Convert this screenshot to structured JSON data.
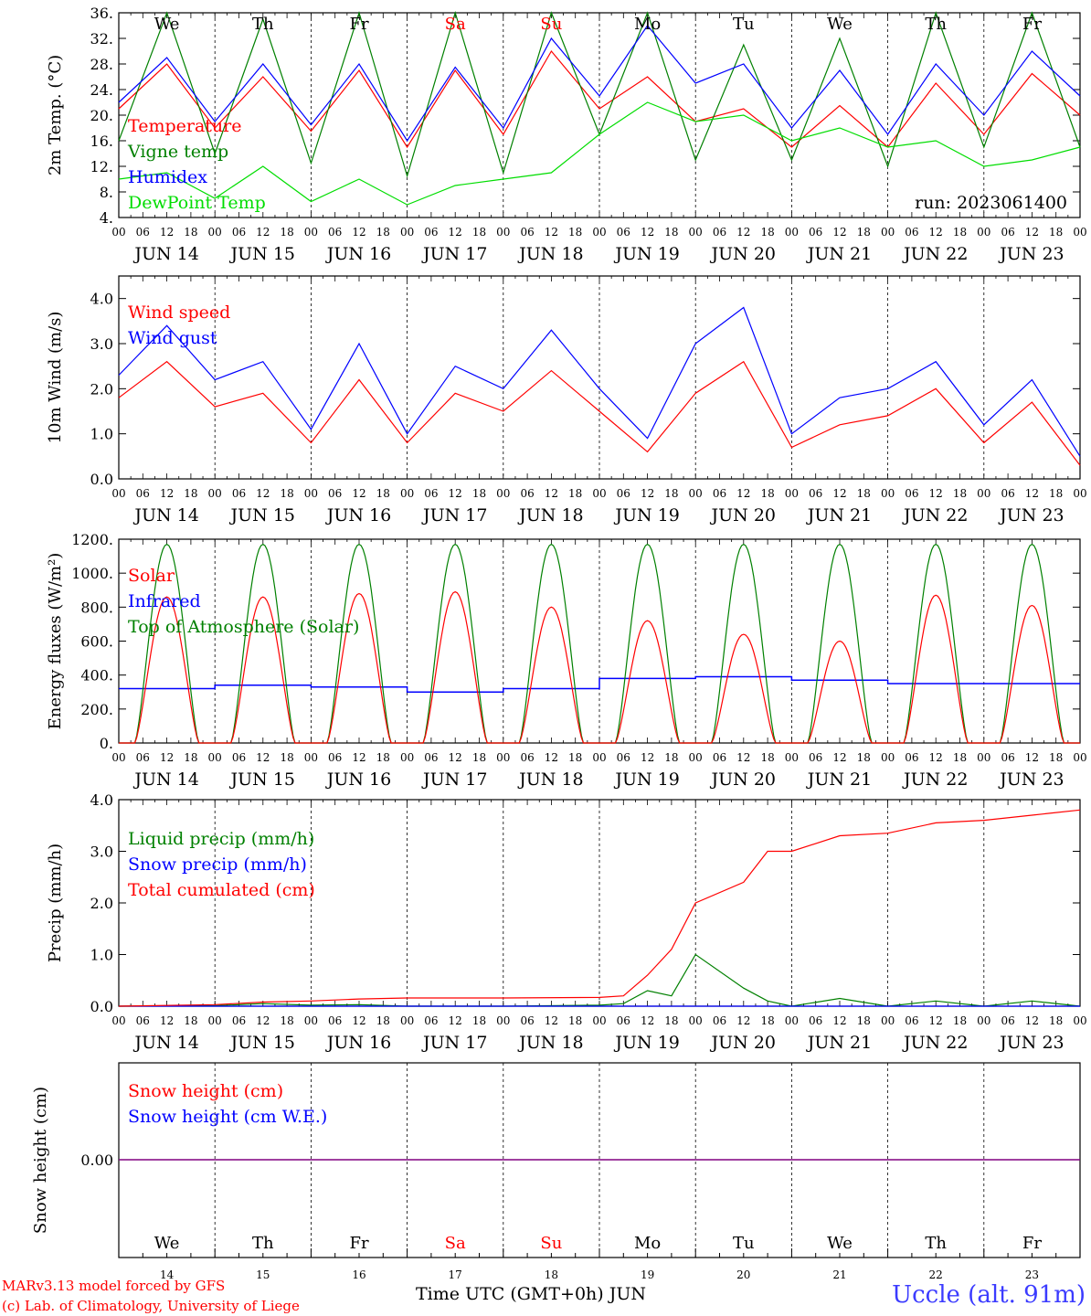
{
  "run_label": "run: 2023061400",
  "day_names": [
    "We",
    "Th",
    "Fr",
    "Sa",
    "Su",
    "Mo",
    "Tu",
    "We",
    "Th",
    "Fr"
  ],
  "day_name_colors": [
    "#000000",
    "#000000",
    "#000000",
    "#ff0000",
    "#ff0000",
    "#000000",
    "#000000",
    "#000000",
    "#000000",
    "#000000"
  ],
  "hour_ticks": [
    "00",
    "06",
    "12",
    "18"
  ],
  "date_labels": [
    "JUN 14",
    "JUN 15",
    "JUN 16",
    "JUN 17",
    "JUN 18",
    "JUN 19",
    "JUN 20",
    "JUN 21",
    "JUN 22",
    "JUN 23"
  ],
  "day_numbers": [
    "14",
    "15",
    "16",
    "17",
    "18",
    "19",
    "20",
    "21",
    "22",
    "23"
  ],
  "footer": {
    "credit_line1": "MARv3.13 model forced by GFS",
    "credit_line2": "(c) Lab. of Climatology, University of Liege",
    "x_title": "Time UTC (GMT+0h) JUN",
    "station": "Uccle (alt. 91m)"
  },
  "colors": {
    "red": "#ff0000",
    "green": "#008000",
    "blue": "#0000ff",
    "lightgreen": "#00dd00",
    "purple": "#800080"
  },
  "chart_data": [
    {
      "type": "line",
      "ylabel": "2m Temp. (°C)",
      "ylim": [
        4,
        36
      ],
      "yticks": [
        "4.",
        "8.",
        "12.",
        "16.",
        "20.",
        "24.",
        "28.",
        "32.",
        "36."
      ],
      "x": [
        "JUN 14 00",
        "JUN 14 12",
        "JUN 15 00",
        "JUN 15 12",
        "JUN 16 00",
        "JUN 16 12",
        "JUN 17 00",
        "JUN 17 12",
        "JUN 18 00",
        "JUN 18 12",
        "JUN 19 00",
        "JUN 19 12",
        "JUN 20 00",
        "JUN 20 12",
        "JUN 21 00",
        "JUN 21 12",
        "JUN 22 00",
        "JUN 22 12",
        "JUN 23 00",
        "JUN 23 12",
        "JUN 24 00"
      ],
      "series": [
        {
          "name": "Temperature",
          "color": "#ff0000",
          "values": [
            21,
            28,
            18,
            26,
            17.5,
            27,
            15,
            27,
            17,
            30,
            21,
            26,
            19,
            21,
            15,
            21.5,
            15,
            25,
            17,
            26.5,
            20
          ]
        },
        {
          "name": "Vigne temp",
          "color": "#008000",
          "values": [
            16,
            36,
            14,
            35,
            12.5,
            36,
            10.5,
            36,
            11,
            37,
            17,
            36,
            13,
            31,
            13,
            32,
            12,
            37,
            15,
            37,
            15
          ]
        },
        {
          "name": "Humidex",
          "color": "#0000ff",
          "values": [
            22,
            29,
            19,
            28,
            18.5,
            28,
            16,
            27.5,
            18,
            32,
            23,
            34,
            25,
            28,
            18,
            27,
            17,
            28,
            20,
            30,
            23
          ]
        },
        {
          "name": "DewPoint Temp",
          "color": "#00dd00",
          "values": [
            10,
            11,
            7,
            12,
            6.5,
            10,
            6,
            9,
            10,
            11,
            17,
            22,
            19,
            20,
            16,
            18,
            15,
            16,
            12,
            13,
            15
          ]
        }
      ]
    },
    {
      "type": "line",
      "ylabel": "10m Wind (m/s)",
      "ylim": [
        0,
        4.5
      ],
      "yticks": [
        "0.0",
        "1.0",
        "2.0",
        "3.0",
        "4.0"
      ],
      "x": [
        "JUN 14 00",
        "JUN 14 12",
        "JUN 15 00",
        "JUN 15 12",
        "JUN 16 00",
        "JUN 16 12",
        "JUN 17 00",
        "JUN 17 12",
        "JUN 18 00",
        "JUN 18 12",
        "JUN 19 00",
        "JUN 19 12",
        "JUN 20 00",
        "JUN 20 12",
        "JUN 21 00",
        "JUN 21 12",
        "JUN 22 00",
        "JUN 22 12",
        "JUN 23 00",
        "JUN 23 12",
        "JUN 24 00"
      ],
      "series": [
        {
          "name": "Wind speed",
          "color": "#ff0000",
          "values": [
            1.8,
            2.6,
            1.6,
            1.9,
            0.8,
            2.2,
            0.8,
            1.9,
            1.5,
            2.4,
            1.5,
            0.6,
            1.9,
            2.6,
            0.7,
            1.2,
            1.4,
            2.0,
            0.8,
            1.7,
            0.3
          ]
        },
        {
          "name": "Wind gust",
          "color": "#0000ff",
          "values": [
            2.3,
            3.4,
            2.2,
            2.6,
            1.1,
            3.0,
            1.0,
            2.5,
            2.0,
            3.3,
            2.0,
            0.9,
            3.0,
            3.8,
            1.0,
            1.8,
            2.0,
            2.6,
            1.2,
            2.2,
            0.5
          ]
        }
      ]
    },
    {
      "type": "line",
      "ylabel": "Energy fluxes (W/m²)",
      "ylim": [
        0,
        1200
      ],
      "yticks": [
        "0.",
        "200.",
        "400.",
        "600.",
        "800.",
        "1000.",
        "1200."
      ],
      "peaks_day": [
        "JUN 14",
        "JUN 15",
        "JUN 16",
        "JUN 17",
        "JUN 18",
        "JUN 19",
        "JUN 20",
        "JUN 21",
        "JUN 22",
        "JUN 23"
      ],
      "series": [
        {
          "name": "Solar",
          "color": "#ff0000",
          "daily_peak": [
            860,
            860,
            880,
            890,
            800,
            720,
            640,
            600,
            870,
            810
          ]
        },
        {
          "name": "Infrared",
          "color": "#0000ff",
          "daily_level": [
            320,
            340,
            330,
            300,
            320,
            380,
            390,
            370,
            350,
            350
          ]
        },
        {
          "name": "Top of Atmosphere (Solar)",
          "color": "#008000",
          "daily_peak": [
            1170,
            1170,
            1170,
            1170,
            1170,
            1170,
            1170,
            1170,
            1170,
            1170
          ]
        }
      ]
    },
    {
      "type": "line",
      "ylabel": "Precip (mm/h)",
      "ylim": [
        0,
        4
      ],
      "yticks": [
        "0.0",
        "1.0",
        "2.0",
        "3.0",
        "4.0"
      ],
      "x": [
        "JUN 14 00",
        "JUN 15 00",
        "JUN 15 12",
        "JUN 16 00",
        "JUN 16 12",
        "JUN 17 00",
        "JUN 18 00",
        "JUN 19 00",
        "JUN 19 06",
        "JUN 19 12",
        "JUN 19 18",
        "JUN 20 00",
        "JUN 20 12",
        "JUN 20 18",
        "JUN 21 00",
        "JUN 21 12",
        "JUN 22 00",
        "JUN 22 12",
        "JUN 23 00",
        "JUN 23 12",
        "JUN 24 00"
      ],
      "series": [
        {
          "name": "Liquid precip (mm/h)",
          "color": "#008000",
          "values": [
            0,
            0.01,
            0.05,
            0.02,
            0.03,
            0,
            0,
            0.02,
            0.05,
            0.3,
            0.2,
            1.0,
            0.35,
            0.1,
            0,
            0.15,
            0,
            0.1,
            0,
            0.1,
            0
          ]
        },
        {
          "name": "Snow precip (mm/h)",
          "color": "#0000ff",
          "values": [
            0,
            0,
            0,
            0,
            0,
            0,
            0,
            0,
            0,
            0,
            0,
            0,
            0,
            0,
            0,
            0,
            0,
            0,
            0,
            0,
            0
          ]
        },
        {
          "name": "Total cumulated (cm)",
          "color": "#ff0000",
          "values": [
            0,
            0.03,
            0.08,
            0.1,
            0.14,
            0.16,
            0.16,
            0.17,
            0.2,
            0.6,
            1.1,
            2.0,
            2.4,
            3.0,
            3.0,
            3.3,
            3.35,
            3.55,
            3.6,
            3.7,
            3.8
          ]
        }
      ]
    },
    {
      "type": "line",
      "ylabel": "Snow height (cm)",
      "yticks": [
        "0.00"
      ],
      "series": [
        {
          "name": "Snow height (cm)",
          "color": "#ff0000",
          "values": [
            0,
            0,
            0,
            0,
            0,
            0,
            0,
            0,
            0,
            0,
            0
          ]
        },
        {
          "name": "Snow height (cm W.E.)",
          "color": "#0000ff",
          "values": [
            0,
            0,
            0,
            0,
            0,
            0,
            0,
            0,
            0,
            0,
            0
          ]
        }
      ]
    }
  ]
}
